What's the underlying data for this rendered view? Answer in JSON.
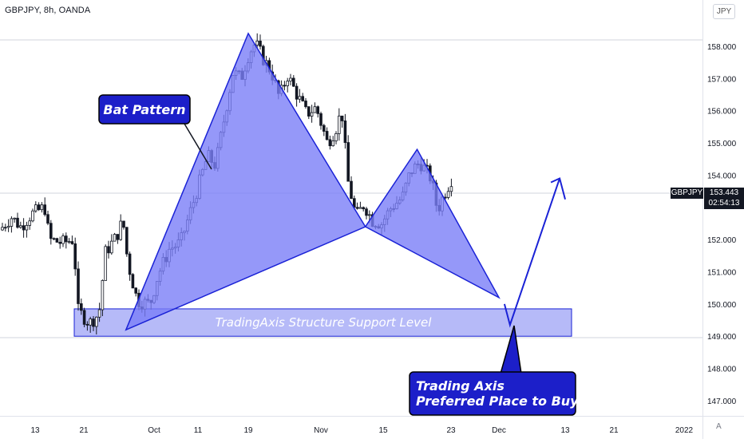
{
  "header": {
    "symbol": "GBPJPY, 8h, OANDA",
    "currency_button": "JPY",
    "auto_button": "A"
  },
  "price_tag": {
    "symbol": "GBPJPY",
    "price": "153.443",
    "countdown": "02:54:13"
  },
  "annotations": {
    "bat_pattern": "Bat Pattern",
    "support_level": "TradingAxis Structure Support Level",
    "buy_line1": "Trading Axis",
    "buy_line2": "Preferred Place to Buy"
  },
  "colors": {
    "up_candle": "#ffffff",
    "down_candle": "#131722",
    "pattern_fill": "#7b7ef7",
    "pattern_stroke": "#1a22d6",
    "callout_fill": "#1c1fc9",
    "zone_fill": "#9ea3f6"
  },
  "chart_data": {
    "type": "candlestick",
    "y_ticks": [
      "158.000",
      "157.000",
      "156.000",
      "155.000",
      "154.000",
      "152.000",
      "151.000",
      "150.000",
      "149.000",
      "148.000",
      "147.000"
    ],
    "x_ticks": [
      "13",
      "21",
      "Oct",
      "11",
      "19",
      "Nov",
      "15",
      "23",
      "Dec",
      "13",
      "21",
      "2022"
    ],
    "ylim": [
      146.2,
      159.2
    ],
    "current_price": 153.443,
    "support_zone": [
      149.0,
      149.85
    ],
    "bat_pattern": {
      "X": {
        "date": "Sep 27",
        "price": 149.2
      },
      "A": {
        "date": "Oct 19",
        "price": 158.4
      },
      "B": {
        "date": "Nov 11",
        "price": 152.4
      },
      "C": {
        "date": "Nov 19",
        "price": 154.8
      },
      "D": {
        "date": "Dec 1",
        "price": 150.2
      }
    },
    "projection": [
      {
        "date": "Dec 2",
        "price": 150.0
      },
      {
        "date": "Dec 3",
        "price": 149.35
      },
      {
        "date": "Dec 12",
        "price": 153.9
      },
      {
        "date": "Dec 13",
        "price": 153.25
      }
    ]
  }
}
